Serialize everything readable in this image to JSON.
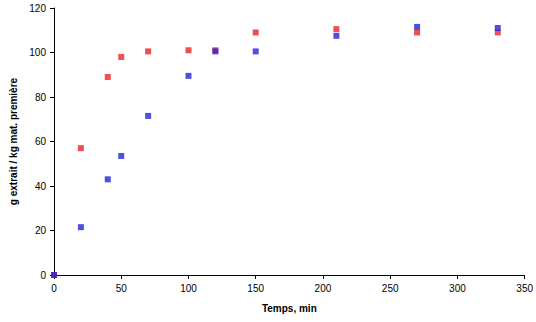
{
  "chart_data": {
    "type": "scatter",
    "x_label": "Temps, min",
    "y_label": "g extrait / kg mat. première",
    "x": [
      0,
      20,
      40,
      50,
      70,
      100,
      120,
      150,
      210,
      270,
      330
    ],
    "series": [
      {
        "color": "#e8232a",
        "marker": "square",
        "values": [
          0,
          57,
          89,
          98,
          100.5,
          101,
          101,
          109,
          110.5,
          109,
          109
        ]
      },
      {
        "color": "#2424d8",
        "marker": "square",
        "values": [
          0,
          21.5,
          43,
          53.5,
          71.5,
          89.5,
          100.5,
          100.5,
          107.5,
          111.5,
          111
        ]
      }
    ],
    "xlim": [
      0,
      350
    ],
    "xticks": [
      0,
      50,
      100,
      150,
      200,
      250,
      300,
      350
    ],
    "ylim": [
      0,
      120
    ],
    "yticks": [
      0,
      20,
      40,
      60,
      80,
      100,
      120
    ],
    "grid": false
  }
}
